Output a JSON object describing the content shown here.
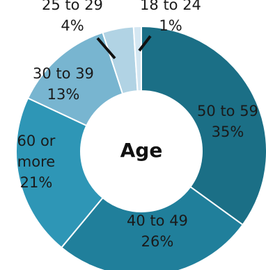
{
  "chart_data": {
    "type": "pie",
    "center_label": "Age",
    "categories": [
      "50 to 59",
      "40 to 49",
      "60 or more",
      "30 to 39",
      "25 to 29",
      "18 to 24"
    ],
    "values": [
      35,
      26,
      21,
      13,
      4,
      1
    ],
    "value_labels": [
      "35%",
      "26%",
      "21%",
      "13%",
      "4%",
      "1%"
    ],
    "colors": [
      "#1b6f86",
      "#207f9b",
      "#2e96b6",
      "#78b5d0",
      "#b1d3e4",
      "#d4e7f2"
    ]
  }
}
